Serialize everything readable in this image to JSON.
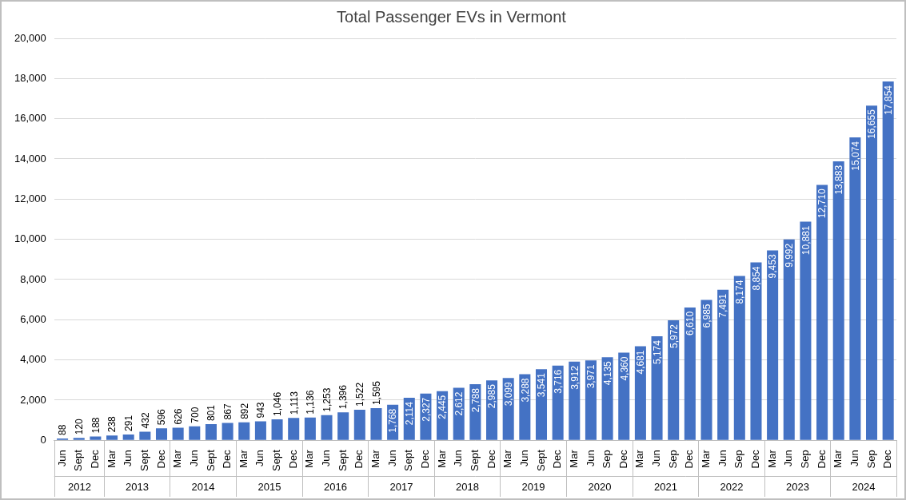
{
  "chart_data": {
    "type": "bar",
    "title": "Total Passenger EVs in Vermont",
    "categories": [
      "Jun",
      "Sept",
      "Dec",
      "Mar",
      "Jun",
      "Sept",
      "Dec",
      "Mar",
      "Jun",
      "Sept",
      "Dec",
      "Mar",
      "Jun",
      "Sept",
      "Dec",
      "Mar",
      "Jun",
      "Sept",
      "Dec",
      "Mar",
      "Jun",
      "Sept",
      "Dec",
      "Mar",
      "Jun",
      "Sept",
      "Dec",
      "Mar",
      "Jun",
      "Sept",
      "Dec",
      "Mar",
      "Jun",
      "Sep",
      "Dec",
      "Mar",
      "Jun",
      "Sep",
      "Dec",
      "Mar",
      "Jun",
      "Sep",
      "Dec",
      "Mar",
      "Jun",
      "Sep",
      "Dec",
      "Mar",
      "Jun",
      "Sep",
      "Dec"
    ],
    "category_groups": [
      "2012",
      "2012",
      "2012",
      "2013",
      "2013",
      "2013",
      "2013",
      "2014",
      "2014",
      "2014",
      "2014",
      "2015",
      "2015",
      "2015",
      "2015",
      "2016",
      "2016",
      "2016",
      "2016",
      "2017",
      "2017",
      "2017",
      "2017",
      "2018",
      "2018",
      "2018",
      "2018",
      "2019",
      "2019",
      "2019",
      "2019",
      "2020",
      "2020",
      "2020",
      "2020",
      "2021",
      "2021",
      "2021",
      "2021",
      "2022",
      "2022",
      "2022",
      "2022",
      "2023",
      "2023",
      "2023",
      "2023",
      "2024",
      "2024",
      "2024",
      "2024"
    ],
    "values": [
      88,
      120,
      188,
      238,
      291,
      432,
      596,
      626,
      700,
      801,
      867,
      892,
      943,
      1046,
      1113,
      1136,
      1253,
      1396,
      1522,
      1595,
      1768,
      2114,
      2327,
      2445,
      2612,
      2788,
      2985,
      3099,
      3288,
      3541,
      3716,
      3912,
      3971,
      4135,
      4360,
      4681,
      5174,
      5972,
      6610,
      6985,
      7491,
      8174,
      8854,
      9453,
      9992,
      10881,
      12710,
      13883,
      15074,
      16655,
      17854
    ],
    "value_labels": [
      "88",
      "120",
      "188",
      "238",
      "291",
      "432",
      "596",
      "626",
      "700",
      "801",
      "867",
      "892",
      "943",
      "1,046",
      "1,113",
      "1,136",
      "1,253",
      "1,396",
      "1,522",
      "1,595",
      "1,768",
      "2,114",
      "2,327",
      "2,445",
      "2,612",
      "2,788",
      "2,985",
      "3,099",
      "3,288",
      "3,541",
      "3,716",
      "3,912",
      "3,971",
      "4,135",
      "4,360",
      "4,681",
      "5,174",
      "5,972",
      "6,610",
      "6,985",
      "7,491",
      "8,174",
      "8,854",
      "9,453",
      "9,992",
      "10,881",
      "12,710",
      "13,883",
      "15,074",
      "16,655",
      "17,854"
    ],
    "color": "#4472c4",
    "ylim": [
      0,
      20000
    ],
    "yticks": [
      0,
      {
        "value": 2000,
        "label": "2,000"
      },
      {
        "value": 4000,
        "label": "4,000"
      },
      {
        "value": 6000,
        "label": "6,000"
      },
      {
        "value": 8000,
        "label": "8,000"
      },
      {
        "value": 10000,
        "label": "10,000"
      },
      {
        "value": 12000,
        "label": "12,000"
      },
      {
        "value": 14000,
        "label": "14,000"
      },
      {
        "value": 16000,
        "label": "16,000"
      },
      {
        "value": 18000,
        "label": "18,000"
      },
      {
        "value": 20000,
        "label": "20,000"
      }
    ],
    "grid": true,
    "data_labels": true
  }
}
